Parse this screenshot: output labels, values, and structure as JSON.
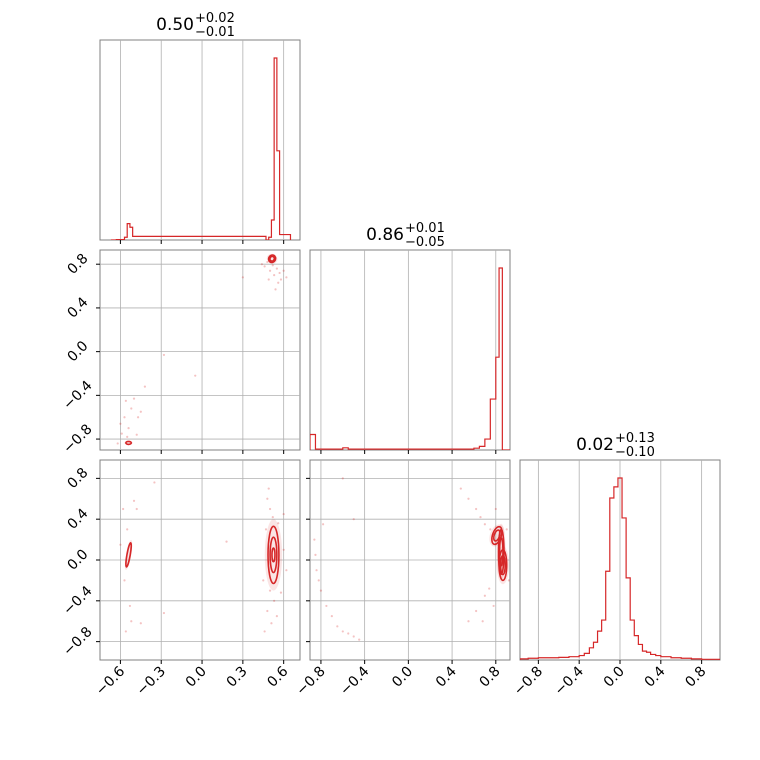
{
  "colors": {
    "accent": "#d62728",
    "grid": "#b0b0b0",
    "axis": "#808080"
  },
  "chart_data": {
    "type": "corner",
    "params": [
      "p0",
      "p1",
      "p2"
    ],
    "titles": [
      {
        "value": "0.50",
        "plus": "+0.02",
        "minus": "−0.01"
      },
      {
        "value": "0.86",
        "plus": "+0.01",
        "minus": "−0.05"
      },
      {
        "value": "0.02",
        "plus": "+0.13",
        "minus": "−0.10"
      }
    ],
    "ranges": [
      [
        -0.75,
        0.72
      ],
      [
        -0.9,
        0.93
      ],
      [
        -0.98,
        0.98
      ]
    ],
    "ticks": [
      {
        "values": [
          -0.6,
          -0.3,
          0.0,
          0.3,
          0.6
        ],
        "labels": [
          "−0.6",
          "−0.3",
          "0.0",
          "0.3",
          "0.6"
        ]
      },
      {
        "values": [
          -0.8,
          -0.4,
          0.0,
          0.4,
          0.8
        ],
        "labels": [
          "−0.8",
          "−0.4",
          "0.0",
          "0.4",
          "0.8"
        ]
      },
      {
        "values": [
          -0.8,
          -0.4,
          0.0,
          0.4,
          0.8
        ],
        "labels": [
          "−0.8",
          "−0.4",
          "0.0",
          "0.4",
          "0.8"
        ]
      }
    ],
    "histograms": [
      {
        "edges": [
          -0.67,
          -0.63,
          -0.57,
          -0.55,
          -0.53,
          -0.51,
          0.47,
          0.49,
          0.51,
          0.53,
          0.55,
          0.57,
          0.65
        ],
        "counts": [
          0,
          0.2,
          1.5,
          9,
          7,
          2,
          0,
          1.5,
          11,
          100,
          49,
          3,
          0
        ]
      },
      {
        "edges": [
          -0.9,
          -0.85,
          -0.6,
          -0.55,
          0.6,
          0.65,
          0.7,
          0.75,
          0.8,
          0.83,
          0.86,
          0.89,
          0.93
        ],
        "counts": [
          8.5,
          0.5,
          1.2,
          0.5,
          1,
          2,
          6,
          28,
          51,
          100,
          0,
          0
        ]
      },
      {
        "edges": [
          -0.98,
          -0.9,
          -0.8,
          -0.7,
          -0.6,
          -0.5,
          -0.4,
          -0.35,
          -0.3,
          -0.26,
          -0.22,
          -0.18,
          -0.14,
          -0.1,
          -0.06,
          -0.02,
          0.02,
          0.06,
          0.1,
          0.14,
          0.18,
          0.22,
          0.26,
          0.3,
          0.35,
          0.4,
          0.5,
          0.6,
          0.7,
          0.8,
          0.98
        ],
        "counts": [
          0.5,
          0.8,
          1,
          1,
          1.2,
          1.5,
          2,
          3,
          5.5,
          8,
          13,
          18,
          40,
          73,
          78,
          82,
          64,
          37,
          18,
          11,
          7,
          4,
          3.5,
          2.5,
          2,
          1.5,
          1,
          0.8,
          0.5,
          0.3
        ]
      }
    ],
    "contours": [
      {
        "x": 0,
        "y": 1,
        "blobs": [
          {
            "cx": 0.515,
            "cy": 0.85,
            "rx": 0.025,
            "ry": 0.035,
            "rot": 28,
            "levels": 2
          },
          {
            "cx": -0.54,
            "cy": -0.835,
            "rx": 0.02,
            "ry": 0.012,
            "rot": 0,
            "levels": 1
          }
        ],
        "scatter": [
          [
            0.48,
            0.82
          ],
          [
            0.52,
            0.79
          ],
          [
            0.55,
            0.76
          ],
          [
            0.57,
            0.72
          ],
          [
            0.53,
            0.7
          ],
          [
            0.5,
            0.74
          ],
          [
            0.58,
            0.66
          ],
          [
            0.46,
            0.78
          ],
          [
            0.6,
            0.74
          ],
          [
            0.44,
            0.8
          ],
          [
            0.56,
            0.63
          ],
          [
            0.49,
            0.66
          ],
          [
            0.62,
            0.68
          ],
          [
            0.54,
            0.57
          ],
          [
            -0.57,
            -0.6
          ],
          [
            -0.52,
            -0.52
          ],
          [
            -0.56,
            -0.45
          ],
          [
            -0.5,
            -0.43
          ],
          [
            -0.6,
            -0.66
          ],
          [
            -0.54,
            -0.7
          ],
          [
            -0.45,
            -0.55
          ],
          [
            -0.47,
            -0.6
          ],
          [
            -0.42,
            -0.32
          ],
          [
            -0.59,
            -0.75
          ],
          [
            -0.55,
            -0.78
          ],
          [
            -0.28,
            -0.03
          ],
          [
            -0.05,
            -0.22
          ],
          [
            0.3,
            0.68
          ],
          [
            -0.62,
            -0.84
          ],
          [
            -0.48,
            -0.76
          ]
        ]
      },
      {
        "x": 0,
        "y": 2,
        "blobs": [
          {
            "cx": 0.525,
            "cy": 0.05,
            "rx": 0.04,
            "ry": 0.28,
            "rot": 0,
            "levels": 3
          },
          {
            "cx": -0.54,
            "cy": 0.05,
            "rx": 0.012,
            "ry": 0.12,
            "rot": 10,
            "levels": 1
          }
        ],
        "scatter": [
          [
            0.48,
            0.6
          ],
          [
            0.5,
            0.5
          ],
          [
            0.52,
            0.42
          ],
          [
            0.47,
            0.3
          ],
          [
            0.56,
            0.36
          ],
          [
            0.5,
            -0.3
          ],
          [
            0.53,
            -0.4
          ],
          [
            0.48,
            -0.5
          ],
          [
            0.55,
            -0.55
          ],
          [
            0.58,
            -0.32
          ],
          [
            0.6,
            0.1
          ],
          [
            0.45,
            -0.2
          ],
          [
            0.62,
            -0.1
          ],
          [
            0.49,
            0.7
          ],
          [
            0.51,
            -0.62
          ],
          [
            0.46,
            -0.7
          ],
          [
            0.6,
            0.45
          ],
          [
            -0.55,
            0.3
          ],
          [
            -0.57,
            -0.2
          ],
          [
            -0.53,
            -0.45
          ],
          [
            -0.58,
            0.5
          ],
          [
            -0.52,
            -0.6
          ],
          [
            -0.56,
            -0.7
          ],
          [
            -0.6,
            0.15
          ],
          [
            -0.48,
            0.5
          ],
          [
            -0.35,
            0.76
          ],
          [
            0.18,
            0.18
          ],
          [
            -0.28,
            -0.52
          ],
          [
            -0.45,
            -0.62
          ],
          [
            -0.5,
            0.58
          ]
        ]
      },
      {
        "x": 1,
        "y": 2,
        "blobs": [
          {
            "cx": 0.85,
            "cy": 0.08,
            "rx": 0.025,
            "ry": 0.22,
            "rot": 0,
            "levels": 2
          },
          {
            "cx": 0.81,
            "cy": 0.24,
            "rx": 0.04,
            "ry": 0.09,
            "rot": 18,
            "levels": 2
          },
          {
            "cx": 0.865,
            "cy": -0.05,
            "rx": 0.035,
            "ry": 0.15,
            "rot": 0,
            "levels": 2
          }
        ],
        "scatter": [
          [
            0.7,
            0.35
          ],
          [
            0.62,
            0.5
          ],
          [
            0.55,
            0.6
          ],
          [
            0.48,
            0.7
          ],
          [
            0.66,
            0.42
          ],
          [
            0.75,
            0.3
          ],
          [
            0.7,
            -0.35
          ],
          [
            0.62,
            -0.5
          ],
          [
            0.55,
            -0.6
          ],
          [
            0.74,
            -0.28
          ],
          [
            0.78,
            -0.45
          ],
          [
            0.68,
            -0.6
          ],
          [
            0.8,
            0.5
          ],
          [
            -0.86,
            0.2
          ],
          [
            -0.84,
            -0.1
          ],
          [
            -0.85,
            0.05
          ],
          [
            -0.8,
            -0.3
          ],
          [
            -0.75,
            -0.45
          ],
          [
            -0.7,
            -0.55
          ],
          [
            -0.65,
            -0.65
          ],
          [
            -0.6,
            -0.7
          ],
          [
            -0.55,
            -0.72
          ],
          [
            -0.5,
            -0.75
          ],
          [
            -0.45,
            -0.78
          ],
          [
            -0.82,
            -0.2
          ],
          [
            -0.78,
            0.35
          ],
          [
            -0.5,
            0.4
          ],
          [
            -0.6,
            0.8
          ],
          [
            0.9,
            0.3
          ],
          [
            0.92,
            -0.2
          ]
        ]
      }
    ]
  }
}
